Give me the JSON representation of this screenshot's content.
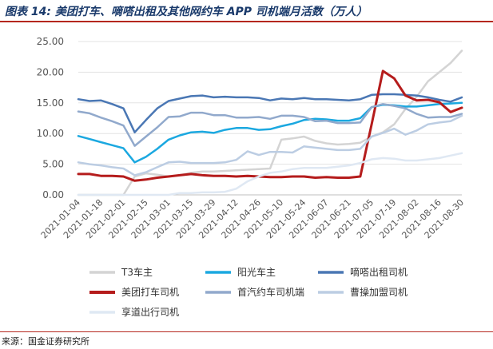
{
  "header": {
    "title": "图表 14:  美团打车、嘀嗒出租及其他网约车 APP 司机端月活数（万人）"
  },
  "footer": {
    "source": "来源：国金证券研究所"
  },
  "colors": {
    "accent_rule": "#b5271e",
    "title_color": "#1a3a6b"
  },
  "chart_data": {
    "type": "line",
    "title": "",
    "xlabel": "",
    "ylabel": "",
    "ylim": [
      0,
      25
    ],
    "yticks": [
      "0.00",
      "5.00",
      "10.00",
      "15.00",
      "20.00",
      "25.00"
    ],
    "grid": true,
    "legend_position": "bottom",
    "x": [
      "2021-01-04",
      "2021-01-11",
      "2021-01-18",
      "2021-01-25",
      "2021-02-01",
      "2021-02-08",
      "2021-02-15",
      "2021-02-22",
      "2021-03-01",
      "2021-03-08",
      "2021-03-15",
      "2021-03-22",
      "2021-03-29",
      "2021-04-05",
      "2021-04-12",
      "2021-04-19",
      "2021-04-26",
      "2021-05-03",
      "2021-05-10",
      "2021-05-17",
      "2021-05-24",
      "2021-05-31",
      "2021-06-07",
      "2021-06-14",
      "2021-06-21",
      "2021-06-28",
      "2021-07-05",
      "2021-07-12",
      "2021-07-19",
      "2021-07-26",
      "2021-08-02",
      "2021-08-09",
      "2021-08-16",
      "2021-08-23",
      "2021-08-30"
    ],
    "xtick_labels": [
      "2021-01-04",
      "2021-01-18",
      "2021-02-01",
      "2021-02-15",
      "2021-03-01",
      "2021-03-15",
      "2021-03-29",
      "2021-04-12",
      "2021-04-26",
      "2021-05-10",
      "2021-05-24",
      "2021-06-07",
      "2021-06-21",
      "2021-07-05",
      "2021-07-19",
      "2021-08-02",
      "2021-08-16",
      "2021-08-30"
    ],
    "series": [
      {
        "name": "T3车主",
        "color": "#d4d4d4",
        "width": 2.5,
        "values": [
          0.0,
          0.0,
          0.0,
          0.0,
          0.0,
          3.0,
          3.5,
          3.3,
          3.0,
          3.2,
          3.6,
          3.8,
          3.8,
          3.9,
          4.0,
          4.1,
          4.2,
          4.3,
          9.0,
          9.2,
          9.5,
          8.8,
          8.4,
          8.2,
          8.3,
          8.5,
          9.5,
          10.2,
          11.5,
          14.0,
          16.0,
          18.5,
          20.0,
          21.5,
          23.5
        ]
      },
      {
        "name": "阳光车主",
        "color": "#1ba8e0",
        "width": 2.5,
        "values": [
          9.6,
          9.1,
          8.6,
          8.1,
          7.6,
          5.3,
          6.2,
          7.5,
          9.0,
          9.7,
          10.2,
          10.3,
          10.1,
          10.6,
          10.9,
          10.9,
          10.6,
          10.7,
          11.2,
          11.6,
          12.2,
          12.4,
          12.3,
          12.1,
          12.1,
          12.5,
          14.3,
          14.7,
          14.6,
          14.4,
          14.4,
          14.6,
          14.8,
          14.9,
          15.0
        ]
      },
      {
        "name": "嘀嗒出租司机",
        "color": "#4a77b4",
        "width": 2.5,
        "values": [
          15.6,
          15.3,
          15.4,
          14.8,
          14.1,
          10.2,
          12.2,
          14.1,
          15.3,
          15.7,
          16.1,
          16.2,
          15.9,
          16.0,
          15.9,
          15.9,
          15.8,
          15.4,
          15.7,
          15.6,
          15.8,
          15.6,
          15.6,
          15.5,
          15.4,
          15.6,
          16.3,
          16.4,
          16.4,
          16.3,
          16.2,
          15.9,
          15.5,
          15.2,
          15.9
        ]
      },
      {
        "name": "美团打车司机",
        "color": "#b51c1c",
        "width": 3,
        "values": [
          3.4,
          3.4,
          3.1,
          3.1,
          3.0,
          2.3,
          2.5,
          2.8,
          3.0,
          3.2,
          3.4,
          3.2,
          3.1,
          3.1,
          3.0,
          3.1,
          3.0,
          2.9,
          2.9,
          3.0,
          3.0,
          2.8,
          2.9,
          2.8,
          2.8,
          3.0,
          11.5,
          20.2,
          19.0,
          16.2,
          15.4,
          15.5,
          15.1,
          13.5,
          14.2
        ]
      },
      {
        "name": "首汽约车司机端",
        "color": "#91a9cc",
        "width": 2.5,
        "values": [
          13.6,
          13.3,
          12.6,
          12.0,
          11.3,
          8.0,
          9.5,
          11.0,
          12.7,
          12.8,
          13.4,
          13.4,
          13.0,
          13.0,
          12.6,
          12.6,
          12.7,
          12.4,
          12.9,
          12.9,
          12.7,
          12.0,
          12.1,
          11.7,
          11.7,
          11.8,
          14.3,
          14.8,
          14.5,
          14.1,
          13.2,
          12.6,
          12.7,
          12.7,
          13.2
        ]
      },
      {
        "name": "曹操加盟司机",
        "color": "#bccde3",
        "width": 2.5,
        "values": [
          5.3,
          5.0,
          4.8,
          4.5,
          4.3,
          3.2,
          3.7,
          4.5,
          5.3,
          5.4,
          5.2,
          5.2,
          5.2,
          5.3,
          5.7,
          7.1,
          6.5,
          7.0,
          7.0,
          6.9,
          7.9,
          7.7,
          7.5,
          7.3,
          7.3,
          7.5,
          9.5,
          10.1,
          10.8,
          9.8,
          10.5,
          11.5,
          11.8,
          12.0,
          12.9
        ]
      },
      {
        "name": "享道出行司机",
        "color": "#dfe8f3",
        "width": 2.5,
        "values": [
          0.0,
          0.0,
          0.0,
          0.0,
          0.0,
          0.0,
          0.0,
          0.0,
          0.0,
          0.3,
          0.3,
          0.4,
          0.4,
          0.5,
          1.0,
          2.2,
          3.0,
          3.6,
          3.8,
          4.2,
          4.4,
          4.4,
          4.4,
          4.6,
          4.8,
          5.2,
          5.8,
          6.0,
          5.9,
          5.6,
          5.6,
          5.8,
          6.0,
          6.4,
          6.8
        ]
      }
    ]
  }
}
